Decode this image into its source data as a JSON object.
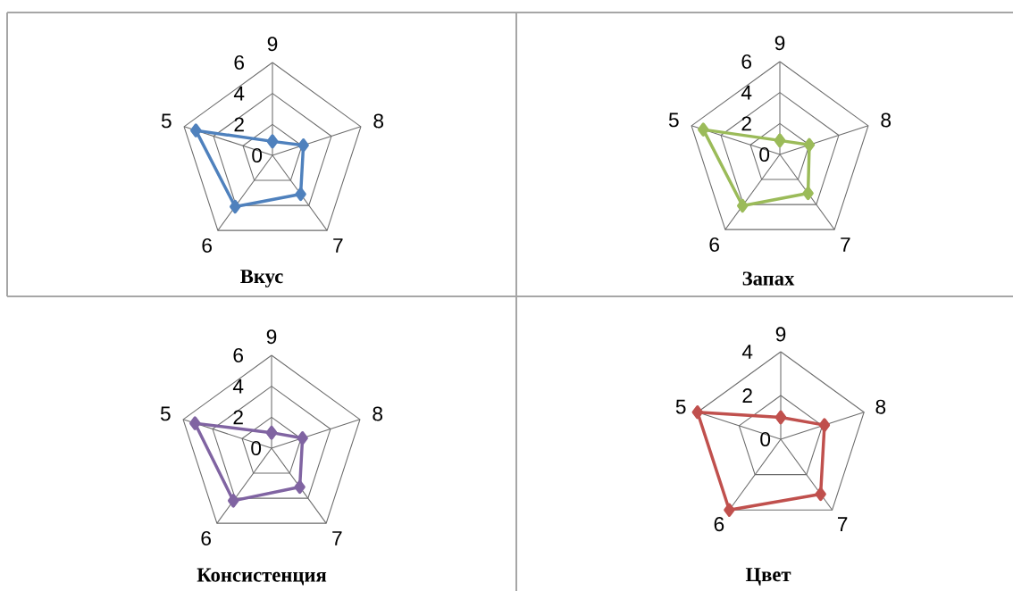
{
  "chart_data": [
    {
      "type": "radar",
      "title": "Вкус",
      "categories": [
        "9",
        "8",
        "7",
        "6",
        "5"
      ],
      "ylim": [
        0,
        6
      ],
      "yticks": [
        0,
        2,
        4,
        6
      ],
      "grid": true,
      "marker": "diamond",
      "series": [
        {
          "color": "#4f81bd",
          "values": [
            0.9,
            2.1,
            3.1,
            4.1,
            5.2
          ]
        }
      ]
    },
    {
      "type": "radar",
      "title": "Запах",
      "categories": [
        "9",
        "8",
        "7",
        "6",
        "5"
      ],
      "ylim": [
        0,
        6
      ],
      "yticks": [
        0,
        2,
        4,
        6
      ],
      "grid": true,
      "marker": "diamond",
      "series": [
        {
          "color": "#9bbb59",
          "values": [
            0.9,
            2.0,
            3.1,
            4.1,
            5.2
          ]
        }
      ]
    },
    {
      "type": "radar",
      "title": "Консистенция",
      "categories": [
        "9",
        "8",
        "7",
        "6",
        "5"
      ],
      "ylim": [
        0,
        6
      ],
      "yticks": [
        0,
        2,
        4,
        6
      ],
      "grid": true,
      "marker": "diamond",
      "series": [
        {
          "color": "#8064a2",
          "values": [
            1.0,
            2.1,
            3.1,
            4.2,
            5.2
          ]
        }
      ]
    },
    {
      "type": "radar",
      "title": "Цвет",
      "categories": [
        "9",
        "8",
        "7",
        "6",
        "5"
      ],
      "ylim": [
        0,
        4
      ],
      "yticks": [
        0,
        2,
        4
      ],
      "grid": true,
      "marker": "diamond",
      "series": [
        {
          "color": "#c0504d",
          "values": [
            1.0,
            2.1,
            3.1,
            4.0,
            4.0
          ]
        }
      ]
    }
  ]
}
